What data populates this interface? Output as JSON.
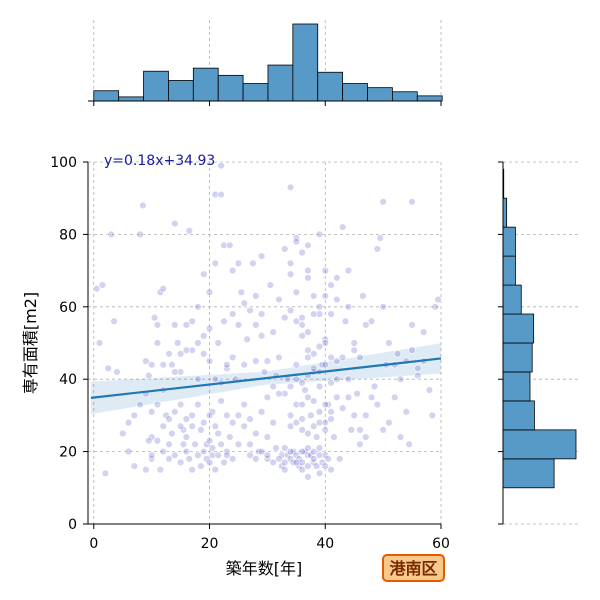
{
  "chart_data": {
    "type": "scatter",
    "title": "",
    "xlabel": "築年数[年]",
    "ylabel": "専有面積[m2]",
    "xlim": [
      -1,
      60
    ],
    "ylim": [
      0,
      100
    ],
    "xticks": [
      0,
      20,
      40,
      60
    ],
    "yticks": [
      0,
      20,
      40,
      60,
      80,
      100
    ],
    "grid": true,
    "annotation": "y=0.18x+34.93",
    "badge": "港南区",
    "regression": {
      "slope": 0.18,
      "intercept": 34.93,
      "ci_halfwidth_left": 4.5,
      "ci_halfwidth_mid": 1.8,
      "ci_halfwidth_right": 4.2
    },
    "point_color": "#6a6ad0",
    "line_color": "#1f77b4",
    "hist_color": "#5799c7",
    "x_histogram": {
      "bins": [
        0,
        4.3,
        8.6,
        12.9,
        17.2,
        21.5,
        25.8,
        30.1,
        34.4,
        38.7,
        43.0,
        47.3,
        51.6,
        55.9,
        60.2
      ],
      "counts": [
        10,
        4,
        29,
        20,
        32,
        25,
        17,
        35,
        75,
        28,
        17,
        13,
        9,
        5
      ]
    },
    "y_histogram": {
      "bins": [
        10,
        18,
        26,
        34,
        42,
        50,
        58,
        66,
        74,
        82,
        90,
        98
      ],
      "counts": [
        70,
        100,
        43,
        37,
        40,
        42,
        25,
        17,
        17,
        5,
        1
      ]
    },
    "points": [
      [
        0.5,
        65
      ],
      [
        1,
        50
      ],
      [
        1.5,
        66
      ],
      [
        2,
        14
      ],
      [
        2.5,
        43
      ],
      [
        3,
        80
      ],
      [
        3.5,
        56
      ],
      [
        4,
        42
      ],
      [
        5,
        25
      ],
      [
        6,
        20
      ],
      [
        7,
        16
      ],
      [
        8,
        80
      ],
      [
        8.5,
        88
      ],
      [
        9,
        45
      ],
      [
        9.5,
        41
      ],
      [
        10,
        24
      ],
      [
        10,
        18
      ],
      [
        10.5,
        57
      ],
      [
        11,
        50
      ],
      [
        11.5,
        64
      ],
      [
        12,
        65
      ],
      [
        12,
        37
      ],
      [
        12.5,
        30
      ],
      [
        13,
        22
      ],
      [
        13,
        18
      ],
      [
        13.5,
        44
      ],
      [
        14,
        55
      ],
      [
        14,
        83
      ],
      [
        14.5,
        50
      ],
      [
        15,
        42
      ],
      [
        15,
        33
      ],
      [
        15.5,
        26
      ],
      [
        16,
        55
      ],
      [
        16,
        20
      ],
      [
        16.5,
        81
      ],
      [
        17,
        48
      ],
      [
        17,
        30
      ],
      [
        17.5,
        22
      ],
      [
        18,
        60
      ],
      [
        18,
        40
      ],
      [
        18.5,
        26
      ],
      [
        19,
        69
      ],
      [
        19,
        47
      ],
      [
        19.5,
        22
      ],
      [
        20,
        64
      ],
      [
        20,
        45
      ],
      [
        20.5,
        31
      ],
      [
        20.5,
        19
      ],
      [
        21,
        91
      ],
      [
        21,
        72
      ],
      [
        21.5,
        50
      ],
      [
        21.5,
        25
      ],
      [
        22,
        99
      ],
      [
        22,
        91
      ],
      [
        22.5,
        77
      ],
      [
        22.5,
        56
      ],
      [
        23,
        43
      ],
      [
        23,
        20
      ],
      [
        23.5,
        77
      ],
      [
        24,
        70
      ],
      [
        24,
        58
      ],
      [
        24.5,
        40
      ],
      [
        25,
        72
      ],
      [
        25,
        22
      ],
      [
        25.5,
        64
      ],
      [
        26,
        44
      ],
      [
        26,
        27
      ],
      [
        26.5,
        51
      ],
      [
        27,
        19
      ],
      [
        27.5,
        72
      ],
      [
        28,
        63
      ],
      [
        28,
        45
      ],
      [
        28.5,
        20
      ],
      [
        29,
        74
      ],
      [
        29,
        58
      ],
      [
        29.5,
        42
      ],
      [
        30,
        35
      ],
      [
        30,
        18
      ],
      [
        30.5,
        66
      ],
      [
        31,
        53
      ],
      [
        31,
        28
      ],
      [
        31.5,
        41
      ],
      [
        32,
        62
      ],
      [
        32,
        46
      ],
      [
        32.5,
        19
      ],
      [
        33,
        76
      ],
      [
        33,
        57
      ],
      [
        33.5,
        40
      ],
      [
        34,
        93
      ],
      [
        34,
        69
      ],
      [
        34,
        30
      ],
      [
        34.5,
        20
      ],
      [
        35,
        79
      ],
      [
        35,
        64
      ],
      [
        35,
        44
      ],
      [
        35.5,
        16
      ],
      [
        36,
        75
      ],
      [
        36,
        55
      ],
      [
        36,
        26
      ],
      [
        36.5,
        37
      ],
      [
        37,
        68
      ],
      [
        37,
        48
      ],
      [
        37,
        19
      ],
      [
        37.5,
        30
      ],
      [
        38,
        63
      ],
      [
        38,
        42
      ],
      [
        38,
        17
      ],
      [
        38.5,
        24
      ],
      [
        39,
        80
      ],
      [
        39,
        58
      ],
      [
        39,
        38
      ],
      [
        39,
        14
      ],
      [
        39.5,
        44
      ],
      [
        40,
        70
      ],
      [
        40,
        51
      ],
      [
        40,
        28
      ],
      [
        40,
        19
      ],
      [
        40.5,
        33
      ],
      [
        41,
        58
      ],
      [
        41,
        39
      ],
      [
        41.5,
        24
      ],
      [
        42,
        62
      ],
      [
        42,
        45
      ],
      [
        42.5,
        18
      ],
      [
        43,
        82
      ],
      [
        43,
        32
      ],
      [
        43.5,
        56
      ],
      [
        44,
        70
      ],
      [
        44,
        40
      ],
      [
        44.5,
        26
      ],
      [
        45,
        48
      ],
      [
        45.5,
        36
      ],
      [
        46,
        22
      ],
      [
        46.5,
        63
      ],
      [
        47,
        55
      ],
      [
        47,
        30
      ],
      [
        48,
        56
      ],
      [
        48.5,
        38
      ],
      [
        49,
        76
      ],
      [
        49.5,
        79
      ],
      [
        50,
        89
      ],
      [
        50,
        60
      ],
      [
        50.5,
        44
      ],
      [
        51,
        28
      ],
      [
        52,
        35
      ],
      [
        52.5,
        47
      ],
      [
        53,
        24
      ],
      [
        54,
        31
      ],
      [
        54.5,
        22
      ],
      [
        55,
        89
      ],
      [
        55,
        55
      ],
      [
        56,
        43
      ],
      [
        57,
        53
      ],
      [
        58,
        37
      ],
      [
        58.5,
        30
      ],
      [
        59,
        60
      ],
      [
        59.5,
        62
      ],
      [
        10,
        19
      ],
      [
        11,
        23
      ],
      [
        11.5,
        15
      ],
      [
        12,
        20
      ],
      [
        13.5,
        25
      ],
      [
        14,
        19
      ],
      [
        15,
        17
      ],
      [
        15.5,
        22
      ],
      [
        16,
        24
      ],
      [
        16.5,
        18
      ],
      [
        17,
        15
      ],
      [
        18,
        19
      ],
      [
        18.5,
        16
      ],
      [
        19,
        20
      ],
      [
        19.5,
        18
      ],
      [
        20,
        23
      ],
      [
        20,
        17
      ],
      [
        20.5,
        21
      ],
      [
        21,
        15
      ],
      [
        21.5,
        19
      ],
      [
        22,
        22
      ],
      [
        22.5,
        17
      ],
      [
        23,
        19
      ],
      [
        23.5,
        24
      ],
      [
        24,
        18
      ],
      [
        27,
        22
      ],
      [
        28,
        18
      ],
      [
        29,
        20
      ],
      [
        30,
        19
      ],
      [
        31,
        17
      ],
      [
        31.5,
        21
      ],
      [
        32,
        18
      ],
      [
        32.5,
        16
      ],
      [
        33,
        17
      ],
      [
        33.5,
        19
      ],
      [
        34,
        18
      ],
      [
        34.5,
        17
      ],
      [
        35,
        19
      ],
      [
        35.5,
        18
      ],
      [
        36,
        17
      ],
      [
        36.5,
        20
      ],
      [
        37,
        16
      ],
      [
        37.5,
        19
      ],
      [
        38,
        18
      ],
      [
        38.5,
        16
      ],
      [
        39,
        19
      ],
      [
        39.5,
        17
      ],
      [
        40,
        16
      ],
      [
        40.5,
        18
      ],
      [
        41,
        15
      ],
      [
        36,
        20
      ],
      [
        37,
        21
      ],
      [
        38,
        20
      ],
      [
        35,
        17
      ],
      [
        34,
        20
      ],
      [
        33,
        21
      ],
      [
        33,
        15
      ],
      [
        36,
        15
      ],
      [
        39,
        21
      ],
      [
        37,
        13
      ],
      [
        34,
        27
      ],
      [
        35,
        28
      ],
      [
        36,
        29
      ],
      [
        37,
        25
      ],
      [
        38,
        27
      ],
      [
        39,
        28
      ],
      [
        40,
        26
      ],
      [
        41,
        29
      ],
      [
        35,
        33
      ],
      [
        36,
        33
      ],
      [
        37,
        35
      ],
      [
        38,
        34
      ],
      [
        39,
        31
      ],
      [
        40,
        33
      ],
      [
        41,
        31
      ],
      [
        42,
        35
      ],
      [
        33,
        36
      ],
      [
        34,
        38
      ],
      [
        35,
        40
      ],
      [
        36,
        39
      ],
      [
        37,
        41
      ],
      [
        38,
        43
      ],
      [
        39,
        42
      ],
      [
        40,
        44
      ],
      [
        41,
        46
      ],
      [
        42,
        40
      ],
      [
        37,
        46
      ],
      [
        38,
        47
      ],
      [
        39,
        49
      ],
      [
        40,
        50
      ],
      [
        36,
        52
      ],
      [
        37,
        53
      ],
      [
        35,
        56
      ],
      [
        36,
        57
      ],
      [
        34,
        59
      ],
      [
        38,
        58
      ],
      [
        39,
        60
      ],
      [
        40,
        63
      ],
      [
        41,
        66
      ],
      [
        42,
        68
      ],
      [
        37,
        70
      ],
      [
        34,
        72
      ],
      [
        35,
        78
      ],
      [
        37,
        77
      ],
      [
        44,
        60
      ],
      [
        45,
        50
      ],
      [
        46,
        46
      ],
      [
        43,
        46
      ],
      [
        44,
        35
      ],
      [
        45,
        30
      ],
      [
        46,
        26
      ],
      [
        47,
        24
      ],
      [
        48,
        35
      ],
      [
        49,
        33
      ],
      [
        50,
        26
      ],
      [
        51,
        50
      ],
      [
        52,
        44
      ],
      [
        53,
        40
      ],
      [
        54,
        45
      ],
      [
        55,
        48
      ],
      [
        56,
        41
      ],
      [
        57,
        45
      ],
      [
        9,
        15
      ],
      [
        9.5,
        23
      ],
      [
        10,
        31
      ],
      [
        11,
        33
      ],
      [
        12,
        27
      ],
      [
        13,
        29
      ],
      [
        14,
        31
      ],
      [
        15,
        27
      ],
      [
        16,
        29
      ],
      [
        17,
        27
      ],
      [
        18,
        33
      ],
      [
        19,
        28
      ],
      [
        20,
        30
      ],
      [
        21,
        27
      ],
      [
        22,
        34
      ],
      [
        23,
        30
      ],
      [
        24,
        28
      ],
      [
        25,
        30
      ],
      [
        26,
        33
      ],
      [
        27,
        29
      ],
      [
        28,
        25
      ],
      [
        29,
        31
      ],
      [
        30,
        24
      ],
      [
        31,
        38
      ],
      [
        32,
        36
      ],
      [
        30,
        45
      ],
      [
        29,
        52
      ],
      [
        28,
        55
      ],
      [
        27,
        59
      ],
      [
        26,
        61
      ],
      [
        25,
        55
      ],
      [
        24,
        46
      ],
      [
        23,
        44
      ],
      [
        22,
        39
      ],
      [
        21,
        40
      ],
      [
        20,
        54
      ],
      [
        19,
        52
      ],
      [
        18,
        50
      ],
      [
        17,
        56
      ],
      [
        16,
        48
      ],
      [
        15,
        47
      ],
      [
        14,
        42
      ],
      [
        13,
        47
      ],
      [
        12,
        44
      ],
      [
        11,
        55
      ],
      [
        10,
        44
      ],
      [
        9,
        36
      ],
      [
        8,
        33
      ],
      [
        7,
        30
      ],
      [
        6,
        28
      ]
    ]
  }
}
